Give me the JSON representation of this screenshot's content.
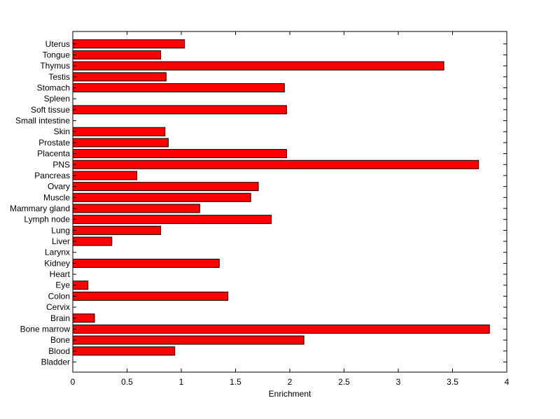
{
  "chart_data": {
    "type": "bar",
    "orientation": "horizontal",
    "title": "",
    "xlabel": "Enrichment",
    "ylabel": "",
    "xlim": [
      0,
      4
    ],
    "xticks": [
      "0",
      "0.5",
      "1",
      "1.5",
      "2",
      "2.5",
      "3",
      "3.5",
      "4"
    ],
    "grid": false,
    "bar_color": "#ff0000",
    "bar_edge_color": "#000000",
    "categories": [
      "Bladder",
      "Blood",
      "Bone",
      "Bone marrow",
      "Brain",
      "Cervix",
      "Colon",
      "Eye",
      "Heart",
      "Kidney",
      "Larynx",
      "Liver",
      "Lung",
      "Lymph node",
      "Mammary gland",
      "Muscle",
      "Ovary",
      "Pancreas",
      "PNS",
      "Placenta",
      "Prostate",
      "Skin",
      "Small intestine",
      "Soft tissue",
      "Spleen",
      "Stomach",
      "Testis",
      "Thymus",
      "Tongue",
      "Uterus"
    ],
    "values": [
      0,
      0.94,
      2.13,
      3.84,
      0.2,
      0,
      1.43,
      0.14,
      0,
      1.35,
      0,
      0.36,
      0.81,
      1.83,
      1.17,
      1.64,
      1.71,
      0.59,
      3.74,
      1.97,
      0.88,
      0.85,
      0,
      1.97,
      0,
      1.95,
      0.86,
      3.42,
      0.81,
      1.03
    ]
  }
}
